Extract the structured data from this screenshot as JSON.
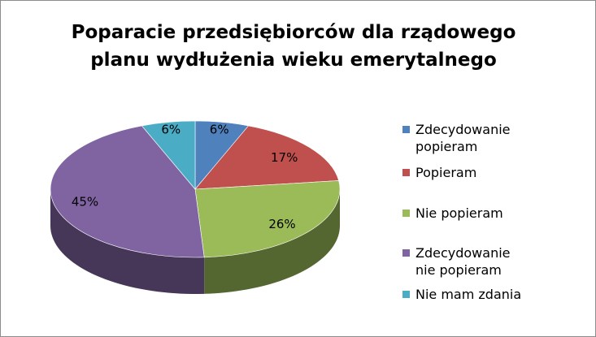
{
  "chart_data": {
    "type": "pie",
    "title_lines": [
      "Poparacie przedsiębiorców dla rządowego",
      "planu wydłużenia wieku emerytalnego"
    ],
    "slices": [
      {
        "name": "Zdecydowanie popieram",
        "legend_lines": [
          "Zdecydowanie",
          "popieram"
        ],
        "value": 6,
        "label": "6%",
        "color": "#4F81BD"
      },
      {
        "name": "Popieram",
        "legend_lines": [
          "Popieram"
        ],
        "value": 17,
        "label": "17%",
        "color": "#C0504D"
      },
      {
        "name": "Nie popieram",
        "legend_lines": [
          "Nie popieram"
        ],
        "value": 26,
        "label": "26%",
        "color": "#9BBB59"
      },
      {
        "name": "Zdecydowanie nie popieram",
        "legend_lines": [
          "Zdecydowanie",
          "nie popieram"
        ],
        "value": 45,
        "label": "45%",
        "color": "#8064A2"
      },
      {
        "name": "Nie mam zdania",
        "legend_lines": [
          "Nie mam zdania"
        ],
        "value": 6,
        "label": "6%",
        "color": "#4BACC6"
      }
    ],
    "style": "3d",
    "legend_position": "right"
  }
}
